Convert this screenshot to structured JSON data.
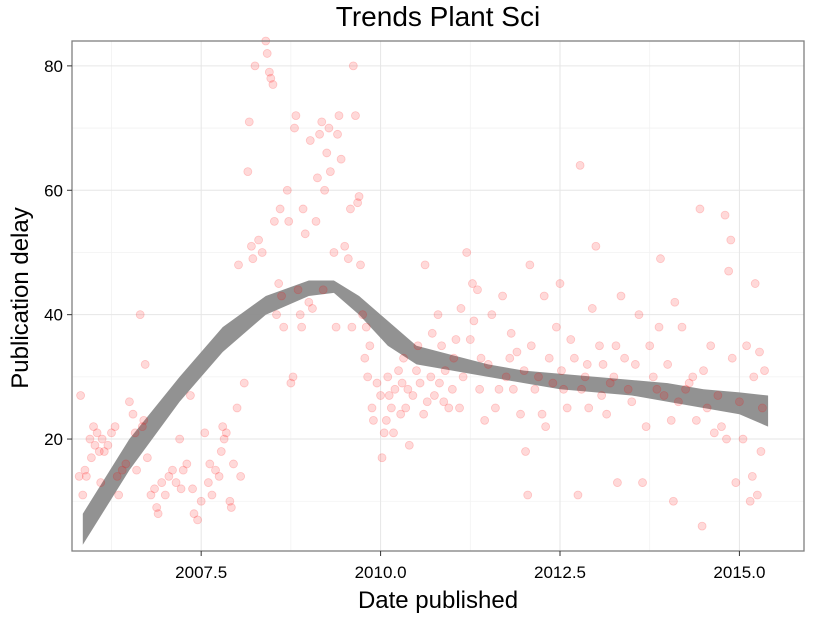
{
  "chart_data": {
    "type": "scatter",
    "title": "Trends Plant Sci",
    "xlabel": "Date published",
    "ylabel": "Publication delay",
    "xlim": [
      2005.7,
      2015.9
    ],
    "ylim": [
      2,
      84
    ],
    "xticks": [
      2007.5,
      2010.0,
      2012.5,
      2015.0
    ],
    "xtick_labels": [
      "2007.5",
      "2010.0",
      "2012.5",
      "2015.0"
    ],
    "yticks": [
      20,
      40,
      60,
      80
    ],
    "ytick_labels": [
      "20",
      "40",
      "60",
      "80"
    ],
    "grid": true,
    "point_color": "#ff0000",
    "point_opacity": 0.15,
    "band_color": "#8c8c8c",
    "smooth": {
      "x": [
        2005.85,
        2006.5,
        2007.2,
        2007.8,
        2008.4,
        2009.0,
        2009.35,
        2009.7,
        2010.1,
        2010.5,
        2011.0,
        2011.5,
        2012.0,
        2012.5,
        2013.0,
        2013.5,
        2014.0,
        2014.5,
        2015.0,
        2015.4
      ],
      "lower": [
        3,
        15,
        26,
        34,
        40,
        43,
        43.5,
        40,
        35,
        32,
        31,
        30,
        29,
        28,
        27.5,
        27,
        26,
        25,
        24,
        22
      ],
      "upper": [
        8,
        20,
        30,
        38,
        43,
        45.5,
        45.5,
        43,
        39,
        35,
        33.5,
        32,
        31,
        30.5,
        30,
        29.5,
        29,
        28,
        27.5,
        27
      ]
    },
    "points": [
      [
        2005.8,
        14
      ],
      [
        2005.82,
        27
      ],
      [
        2005.85,
        11
      ],
      [
        2005.88,
        15
      ],
      [
        2005.9,
        14
      ],
      [
        2005.95,
        20
      ],
      [
        2005.97,
        17
      ],
      [
        2006.0,
        22
      ],
      [
        2006.02,
        19
      ],
      [
        2006.05,
        21
      ],
      [
        2006.08,
        18
      ],
      [
        2006.1,
        13
      ],
      [
        2006.12,
        20
      ],
      [
        2006.15,
        18
      ],
      [
        2006.2,
        19
      ],
      [
        2006.25,
        21
      ],
      [
        2006.3,
        22
      ],
      [
        2006.33,
        14
      ],
      [
        2006.35,
        11
      ],
      [
        2006.4,
        15
      ],
      [
        2006.45,
        16
      ],
      [
        2006.5,
        26
      ],
      [
        2006.55,
        24
      ],
      [
        2006.58,
        21
      ],
      [
        2006.6,
        15
      ],
      [
        2006.65,
        40
      ],
      [
        2006.68,
        22
      ],
      [
        2006.7,
        23
      ],
      [
        2006.72,
        32
      ],
      [
        2006.75,
        17
      ],
      [
        2006.8,
        11
      ],
      [
        2006.85,
        12
      ],
      [
        2006.88,
        9
      ],
      [
        2006.9,
        8
      ],
      [
        2006.95,
        13
      ],
      [
        2007.0,
        11
      ],
      [
        2007.05,
        14
      ],
      [
        2007.1,
        15
      ],
      [
        2007.15,
        13
      ],
      [
        2007.2,
        20
      ],
      [
        2007.22,
        12
      ],
      [
        2007.25,
        15
      ],
      [
        2007.3,
        16
      ],
      [
        2007.35,
        27
      ],
      [
        2007.38,
        12
      ],
      [
        2007.4,
        8
      ],
      [
        2007.45,
        7
      ],
      [
        2007.5,
        10
      ],
      [
        2007.55,
        21
      ],
      [
        2007.6,
        13
      ],
      [
        2007.62,
        16
      ],
      [
        2007.65,
        11
      ],
      [
        2007.7,
        15
      ],
      [
        2007.75,
        14
      ],
      [
        2007.78,
        18
      ],
      [
        2007.8,
        22
      ],
      [
        2007.82,
        20
      ],
      [
        2007.85,
        21
      ],
      [
        2007.9,
        10
      ],
      [
        2007.92,
        9
      ],
      [
        2007.95,
        16
      ],
      [
        2008.0,
        25
      ],
      [
        2008.02,
        48
      ],
      [
        2008.05,
        14
      ],
      [
        2008.1,
        29
      ],
      [
        2008.15,
        63
      ],
      [
        2008.17,
        71
      ],
      [
        2008.2,
        51
      ],
      [
        2008.22,
        49
      ],
      [
        2008.25,
        80
      ],
      [
        2008.3,
        52
      ],
      [
        2008.35,
        50
      ],
      [
        2008.4,
        84
      ],
      [
        2008.42,
        82
      ],
      [
        2008.45,
        79
      ],
      [
        2008.47,
        78
      ],
      [
        2008.5,
        77
      ],
      [
        2008.52,
        55
      ],
      [
        2008.55,
        40
      ],
      [
        2008.58,
        45
      ],
      [
        2008.6,
        57
      ],
      [
        2008.62,
        43
      ],
      [
        2008.65,
        38
      ],
      [
        2008.7,
        60
      ],
      [
        2008.72,
        55
      ],
      [
        2008.75,
        29
      ],
      [
        2008.78,
        30
      ],
      [
        2008.8,
        70
      ],
      [
        2008.82,
        72
      ],
      [
        2008.85,
        44
      ],
      [
        2008.88,
        40
      ],
      [
        2008.9,
        38
      ],
      [
        2008.92,
        57
      ],
      [
        2008.95,
        53
      ],
      [
        2009.0,
        42
      ],
      [
        2009.02,
        68
      ],
      [
        2009.05,
        41
      ],
      [
        2009.1,
        55
      ],
      [
        2009.12,
        62
      ],
      [
        2009.15,
        69
      ],
      [
        2009.18,
        71
      ],
      [
        2009.2,
        44
      ],
      [
        2009.22,
        60
      ],
      [
        2009.25,
        66
      ],
      [
        2009.28,
        70
      ],
      [
        2009.3,
        63
      ],
      [
        2009.35,
        50
      ],
      [
        2009.38,
        38
      ],
      [
        2009.4,
        69
      ],
      [
        2009.42,
        72
      ],
      [
        2009.45,
        65
      ],
      [
        2009.5,
        51
      ],
      [
        2009.55,
        49
      ],
      [
        2009.58,
        57
      ],
      [
        2009.6,
        38
      ],
      [
        2009.62,
        80
      ],
      [
        2009.65,
        72
      ],
      [
        2009.68,
        58
      ],
      [
        2009.7,
        59
      ],
      [
        2009.72,
        48
      ],
      [
        2009.75,
        40
      ],
      [
        2009.78,
        33
      ],
      [
        2009.8,
        38
      ],
      [
        2009.82,
        30
      ],
      [
        2009.85,
        35
      ],
      [
        2009.88,
        25
      ],
      [
        2009.9,
        23
      ],
      [
        2009.95,
        29
      ],
      [
        2010.0,
        27
      ],
      [
        2010.02,
        17
      ],
      [
        2010.05,
        21
      ],
      [
        2010.08,
        23
      ],
      [
        2010.1,
        30
      ],
      [
        2010.12,
        27
      ],
      [
        2010.15,
        25
      ],
      [
        2010.18,
        21
      ],
      [
        2010.2,
        28
      ],
      [
        2010.25,
        31
      ],
      [
        2010.28,
        24
      ],
      [
        2010.3,
        29
      ],
      [
        2010.32,
        33
      ],
      [
        2010.35,
        25
      ],
      [
        2010.38,
        28
      ],
      [
        2010.4,
        19
      ],
      [
        2010.45,
        27
      ],
      [
        2010.5,
        31
      ],
      [
        2010.52,
        35
      ],
      [
        2010.55,
        29
      ],
      [
        2010.6,
        24
      ],
      [
        2010.62,
        48
      ],
      [
        2010.65,
        26
      ],
      [
        2010.7,
        30
      ],
      [
        2010.72,
        37
      ],
      [
        2010.75,
        27
      ],
      [
        2010.8,
        40
      ],
      [
        2010.82,
        29
      ],
      [
        2010.85,
        35
      ],
      [
        2010.88,
        26
      ],
      [
        2010.9,
        31
      ],
      [
        2010.95,
        25
      ],
      [
        2011.0,
        28
      ],
      [
        2011.02,
        33
      ],
      [
        2011.05,
        36
      ],
      [
        2011.1,
        25
      ],
      [
        2011.12,
        41
      ],
      [
        2011.15,
        30
      ],
      [
        2011.2,
        50
      ],
      [
        2011.25,
        36
      ],
      [
        2011.28,
        45
      ],
      [
        2011.3,
        39
      ],
      [
        2011.35,
        44
      ],
      [
        2011.38,
        28
      ],
      [
        2011.4,
        33
      ],
      [
        2011.45,
        23
      ],
      [
        2011.5,
        32
      ],
      [
        2011.55,
        40
      ],
      [
        2011.6,
        25
      ],
      [
        2011.65,
        28
      ],
      [
        2011.7,
        43
      ],
      [
        2011.75,
        30
      ],
      [
        2011.8,
        33
      ],
      [
        2011.82,
        37
      ],
      [
        2011.85,
        28
      ],
      [
        2011.9,
        34
      ],
      [
        2011.95,
        24
      ],
      [
        2012.0,
        31
      ],
      [
        2012.02,
        18
      ],
      [
        2012.05,
        11
      ],
      [
        2012.08,
        48
      ],
      [
        2012.1,
        35
      ],
      [
        2012.15,
        28
      ],
      [
        2012.2,
        30
      ],
      [
        2012.25,
        24
      ],
      [
        2012.28,
        43
      ],
      [
        2012.3,
        22
      ],
      [
        2012.35,
        33
      ],
      [
        2012.4,
        29
      ],
      [
        2012.45,
        38
      ],
      [
        2012.5,
        45
      ],
      [
        2012.52,
        31
      ],
      [
        2012.55,
        28
      ],
      [
        2012.6,
        25
      ],
      [
        2012.65,
        36
      ],
      [
        2012.7,
        33
      ],
      [
        2012.75,
        11
      ],
      [
        2012.78,
        64
      ],
      [
        2012.8,
        28
      ],
      [
        2012.85,
        30
      ],
      [
        2012.88,
        32
      ],
      [
        2012.9,
        25
      ],
      [
        2012.95,
        41
      ],
      [
        2013.0,
        51
      ],
      [
        2013.05,
        35
      ],
      [
        2013.08,
        27
      ],
      [
        2013.1,
        32
      ],
      [
        2013.15,
        24
      ],
      [
        2013.2,
        29
      ],
      [
        2013.25,
        30
      ],
      [
        2013.28,
        35
      ],
      [
        2013.3,
        13
      ],
      [
        2013.35,
        43
      ],
      [
        2013.4,
        33
      ],
      [
        2013.45,
        28
      ],
      [
        2013.5,
        26
      ],
      [
        2013.55,
        32
      ],
      [
        2013.6,
        40
      ],
      [
        2013.65,
        13
      ],
      [
        2013.7,
        22
      ],
      [
        2013.75,
        35
      ],
      [
        2013.8,
        30
      ],
      [
        2013.85,
        28
      ],
      [
        2013.88,
        38
      ],
      [
        2013.9,
        49
      ],
      [
        2013.95,
        27
      ],
      [
        2014.0,
        32
      ],
      [
        2014.05,
        23
      ],
      [
        2014.08,
        10
      ],
      [
        2014.1,
        42
      ],
      [
        2014.15,
        26
      ],
      [
        2014.2,
        38
      ],
      [
        2014.25,
        28
      ],
      [
        2014.3,
        29
      ],
      [
        2014.35,
        30
      ],
      [
        2014.4,
        23
      ],
      [
        2014.45,
        57
      ],
      [
        2014.48,
        6
      ],
      [
        2014.5,
        31
      ],
      [
        2014.55,
        25
      ],
      [
        2014.6,
        35
      ],
      [
        2014.65,
        21
      ],
      [
        2014.7,
        27
      ],
      [
        2014.75,
        22
      ],
      [
        2014.8,
        56
      ],
      [
        2014.82,
        20
      ],
      [
        2014.85,
        47
      ],
      [
        2014.88,
        52
      ],
      [
        2014.9,
        33
      ],
      [
        2014.95,
        13
      ],
      [
        2015.0,
        26
      ],
      [
        2015.05,
        20
      ],
      [
        2015.1,
        35
      ],
      [
        2015.15,
        10
      ],
      [
        2015.18,
        14
      ],
      [
        2015.2,
        30
      ],
      [
        2015.22,
        45
      ],
      [
        2015.25,
        11
      ],
      [
        2015.28,
        34
      ],
      [
        2015.3,
        18
      ],
      [
        2015.32,
        25
      ],
      [
        2015.35,
        31
      ]
    ]
  }
}
